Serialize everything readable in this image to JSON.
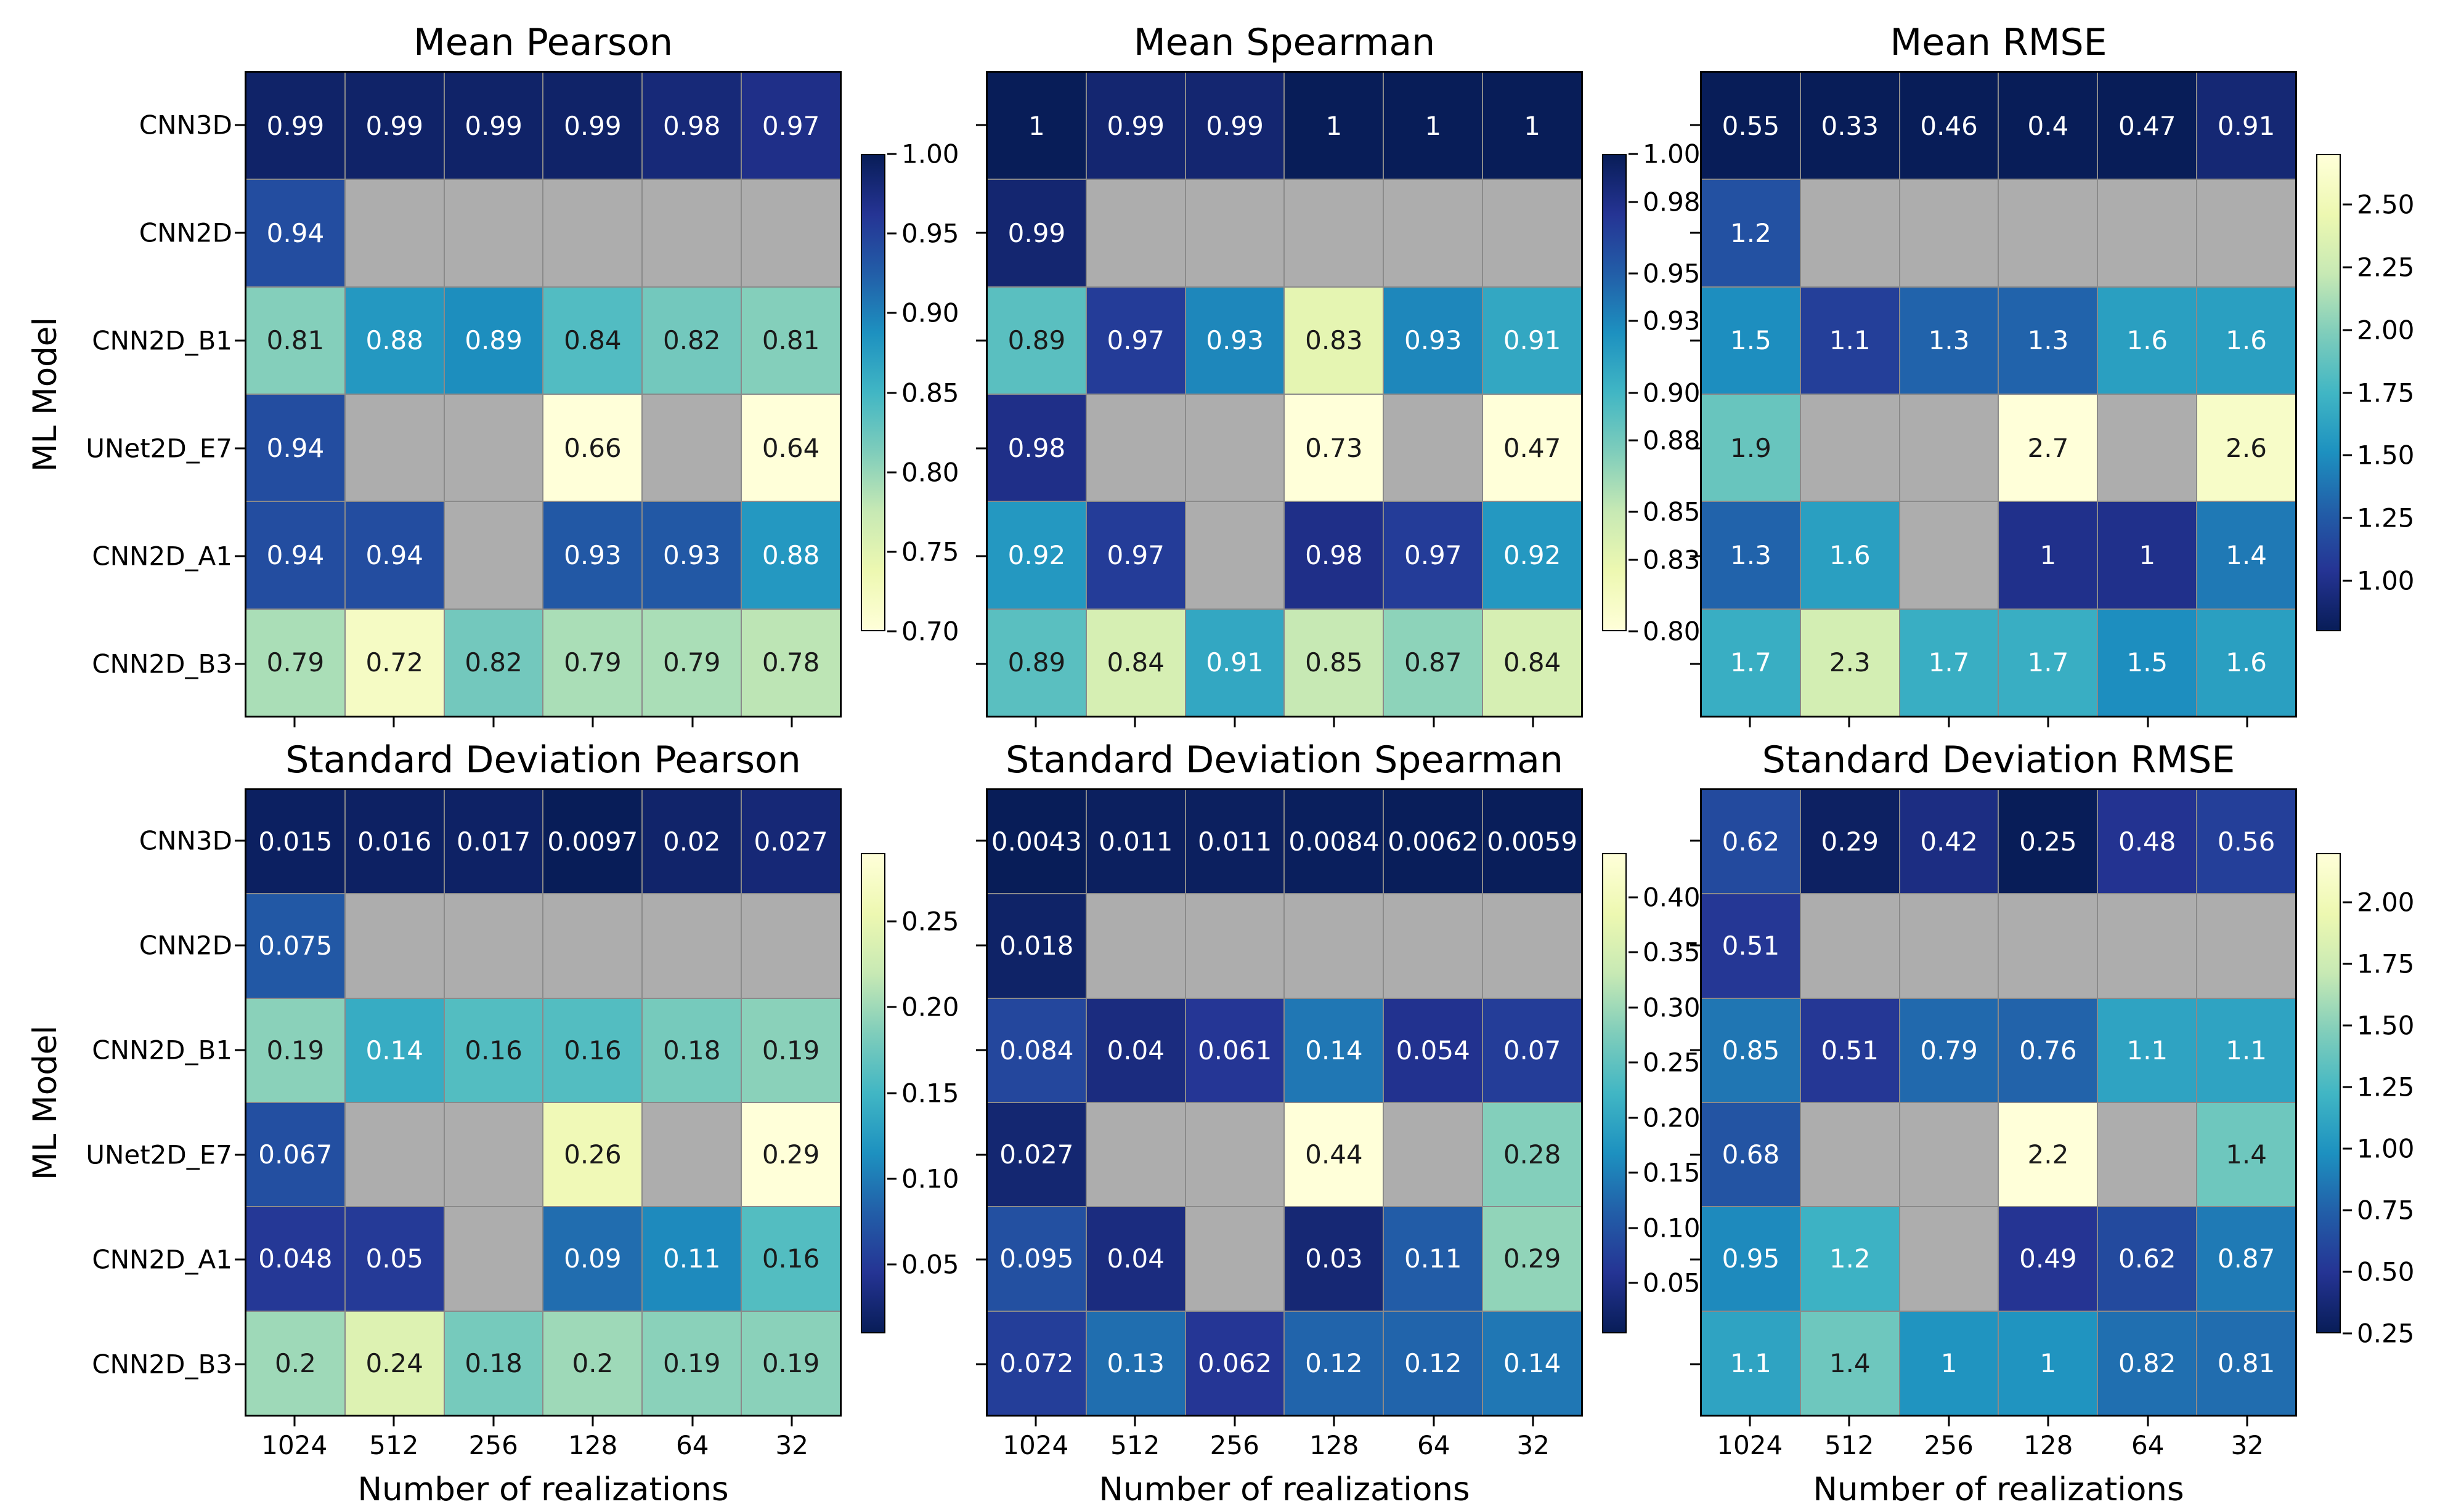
{
  "figure": {
    "xlabel": "Number of realizations",
    "ylabel": "ML Model",
    "x_ticks": [
      "1024",
      "512",
      "256",
      "128",
      "64",
      "32"
    ],
    "y_ticks": [
      "CNN3D",
      "CNN2D",
      "CNN2D_B1",
      "UNet2D_E7",
      "CNN2D_A1",
      "CNN2D_B3"
    ],
    "background": "#ffffff",
    "nan_color": "#adadad",
    "gridline_color": "#8a8a8a",
    "annotation_dark_color": "#1a1a1a",
    "annotation_light_color": "#ffffff",
    "colormap_stops": [
      {
        "t": 0.0,
        "color": "#ffffd9"
      },
      {
        "t": 0.125,
        "color": "#edf8b1"
      },
      {
        "t": 0.25,
        "color": "#c7e9b4"
      },
      {
        "t": 0.375,
        "color": "#7fcdbb"
      },
      {
        "t": 0.5,
        "color": "#41b6c4"
      },
      {
        "t": 0.625,
        "color": "#1d91c0"
      },
      {
        "t": 0.75,
        "color": "#225ea8"
      },
      {
        "t": 0.875,
        "color": "#253494"
      },
      {
        "t": 1.0,
        "color": "#081d58"
      }
    ]
  },
  "chart_data": [
    {
      "type": "heatmap",
      "title": "Mean Pearson",
      "cmap": "YlGnBu",
      "vmin": 0.7,
      "vmax": 1.0,
      "rows": [
        "CNN3D",
        "CNN2D",
        "CNN2D_B1",
        "UNet2D_E7",
        "CNN2D_A1",
        "CNN2D_B3"
      ],
      "columns": [
        "1024",
        "512",
        "256",
        "128",
        "64",
        "32"
      ],
      "values": [
        [
          "0.99",
          "0.99",
          "0.99",
          "0.99",
          "0.98",
          "0.97"
        ],
        [
          "0.94",
          null,
          null,
          null,
          null,
          null
        ],
        [
          "0.81",
          "0.88",
          "0.89",
          "0.84",
          "0.82",
          "0.81"
        ],
        [
          "0.94",
          null,
          null,
          "0.66",
          null,
          "0.64"
        ],
        [
          "0.94",
          "0.94",
          null,
          "0.93",
          "0.93",
          "0.88"
        ],
        [
          "0.79",
          "0.72",
          "0.82",
          "0.79",
          "0.79",
          "0.78"
        ]
      ],
      "colorbar_ticks": [
        "1.00",
        "0.95",
        "0.90",
        "0.85",
        "0.80",
        "0.75",
        "0.70"
      ]
    },
    {
      "type": "heatmap",
      "title": "Mean Spearman",
      "cmap": "YlGnBu",
      "vmin": 0.8,
      "vmax": 1.0,
      "rows": [
        "CNN3D",
        "CNN2D",
        "CNN2D_B1",
        "UNet2D_E7",
        "CNN2D_A1",
        "CNN2D_B3"
      ],
      "columns": [
        "1024",
        "512",
        "256",
        "128",
        "64",
        "32"
      ],
      "values": [
        [
          "1",
          "0.99",
          "0.99",
          "1",
          "1",
          "1"
        ],
        [
          "0.99",
          null,
          null,
          null,
          null,
          null
        ],
        [
          "0.89",
          "0.97",
          "0.93",
          "0.83",
          "0.93",
          "0.91"
        ],
        [
          "0.98",
          null,
          null,
          "0.73",
          null,
          "0.47"
        ],
        [
          "0.92",
          "0.97",
          null,
          "0.98",
          "0.97",
          "0.92"
        ],
        [
          "0.89",
          "0.84",
          "0.91",
          "0.85",
          "0.87",
          "0.84"
        ]
      ],
      "colorbar_ticks": [
        "1.00",
        "0.98",
        "0.95",
        "0.93",
        "0.90",
        "0.88",
        "0.85",
        "0.83",
        "0.80"
      ]
    },
    {
      "type": "heatmap",
      "title": "Mean RMSE",
      "cmap": "YlGnBu_r",
      "vmin": 0.8,
      "vmax": 2.7,
      "rows": [
        "CNN3D",
        "CNN2D",
        "CNN2D_B1",
        "UNet2D_E7",
        "CNN2D_A1",
        "CNN2D_B3"
      ],
      "columns": [
        "1024",
        "512",
        "256",
        "128",
        "64",
        "32"
      ],
      "values": [
        [
          "0.55",
          "0.33",
          "0.46",
          "0.4",
          "0.47",
          "0.91"
        ],
        [
          "1.2",
          null,
          null,
          null,
          null,
          null
        ],
        [
          "1.5",
          "1.1",
          "1.3",
          "1.3",
          "1.6",
          "1.6"
        ],
        [
          "1.9",
          null,
          null,
          "2.7",
          null,
          "2.6"
        ],
        [
          "1.3",
          "1.6",
          null,
          "1",
          "1",
          "1.4"
        ],
        [
          "1.7",
          "2.3",
          "1.7",
          "1.7",
          "1.5",
          "1.6"
        ]
      ],
      "colorbar_ticks": [
        "2.50",
        "2.25",
        "2.00",
        "1.75",
        "1.50",
        "1.25",
        "1.00"
      ]
    },
    {
      "type": "heatmap",
      "title": "Standard Deviation Pearson",
      "cmap": "YlGnBu_r",
      "vmin": 0.0097,
      "vmax": 0.29,
      "rows": [
        "CNN3D",
        "CNN2D",
        "CNN2D_B1",
        "UNet2D_E7",
        "CNN2D_A1",
        "CNN2D_B3"
      ],
      "columns": [
        "1024",
        "512",
        "256",
        "128",
        "64",
        "32"
      ],
      "values": [
        [
          "0.015",
          "0.016",
          "0.017",
          "0.0097",
          "0.02",
          "0.027"
        ],
        [
          "0.075",
          null,
          null,
          null,
          null,
          null
        ],
        [
          "0.19",
          "0.14",
          "0.16",
          "0.16",
          "0.18",
          "0.19"
        ],
        [
          "0.067",
          null,
          null,
          "0.26",
          null,
          "0.29"
        ],
        [
          "0.048",
          "0.05",
          null,
          "0.09",
          "0.11",
          "0.16"
        ],
        [
          "0.2",
          "0.24",
          "0.18",
          "0.2",
          "0.19",
          "0.19"
        ]
      ],
      "colorbar_ticks": [
        "0.25",
        "0.20",
        "0.15",
        "0.10",
        "0.05"
      ]
    },
    {
      "type": "heatmap",
      "title": "Standard Deviation Spearman",
      "cmap": "YlGnBu_r",
      "vmin": 0.0043,
      "vmax": 0.44,
      "rows": [
        "CNN3D",
        "CNN2D",
        "CNN2D_B1",
        "UNet2D_E7",
        "CNN2D_A1",
        "CNN2D_B3"
      ],
      "columns": [
        "1024",
        "512",
        "256",
        "128",
        "64",
        "32"
      ],
      "values": [
        [
          "0.0043",
          "0.011",
          "0.011",
          "0.0084",
          "0.0062",
          "0.0059"
        ],
        [
          "0.018",
          null,
          null,
          null,
          null,
          null
        ],
        [
          "0.084",
          "0.04",
          "0.061",
          "0.14",
          "0.054",
          "0.07"
        ],
        [
          "0.027",
          null,
          null,
          "0.44",
          null,
          "0.28"
        ],
        [
          "0.095",
          "0.04",
          null,
          "0.03",
          "0.11",
          "0.29"
        ],
        [
          "0.072",
          "0.13",
          "0.062",
          "0.12",
          "0.12",
          "0.14"
        ]
      ],
      "colorbar_ticks": [
        "0.40",
        "0.35",
        "0.30",
        "0.25",
        "0.20",
        "0.15",
        "0.10",
        "0.05"
      ]
    },
    {
      "type": "heatmap",
      "title": "Standard Deviation RMSE",
      "cmap": "YlGnBu_r",
      "vmin": 0.25,
      "vmax": 2.2,
      "rows": [
        "CNN3D",
        "CNN2D",
        "CNN2D_B1",
        "UNet2D_E7",
        "CNN2D_A1",
        "CNN2D_B3"
      ],
      "columns": [
        "1024",
        "512",
        "256",
        "128",
        "64",
        "32"
      ],
      "values": [
        [
          "0.62",
          "0.29",
          "0.42",
          "0.25",
          "0.48",
          "0.56"
        ],
        [
          "0.51",
          null,
          null,
          null,
          null,
          null
        ],
        [
          "0.85",
          "0.51",
          "0.79",
          "0.76",
          "1.1",
          "1.1"
        ],
        [
          "0.68",
          null,
          null,
          "2.2",
          null,
          "1.4"
        ],
        [
          "0.95",
          "1.2",
          null,
          "0.49",
          "0.62",
          "0.87"
        ],
        [
          "1.1",
          "1.4",
          "1",
          "1",
          "0.82",
          "0.81"
        ]
      ],
      "colorbar_ticks": [
        "2.00",
        "1.75",
        "1.50",
        "1.25",
        "1.00",
        "0.75",
        "0.50",
        "0.25"
      ]
    }
  ]
}
